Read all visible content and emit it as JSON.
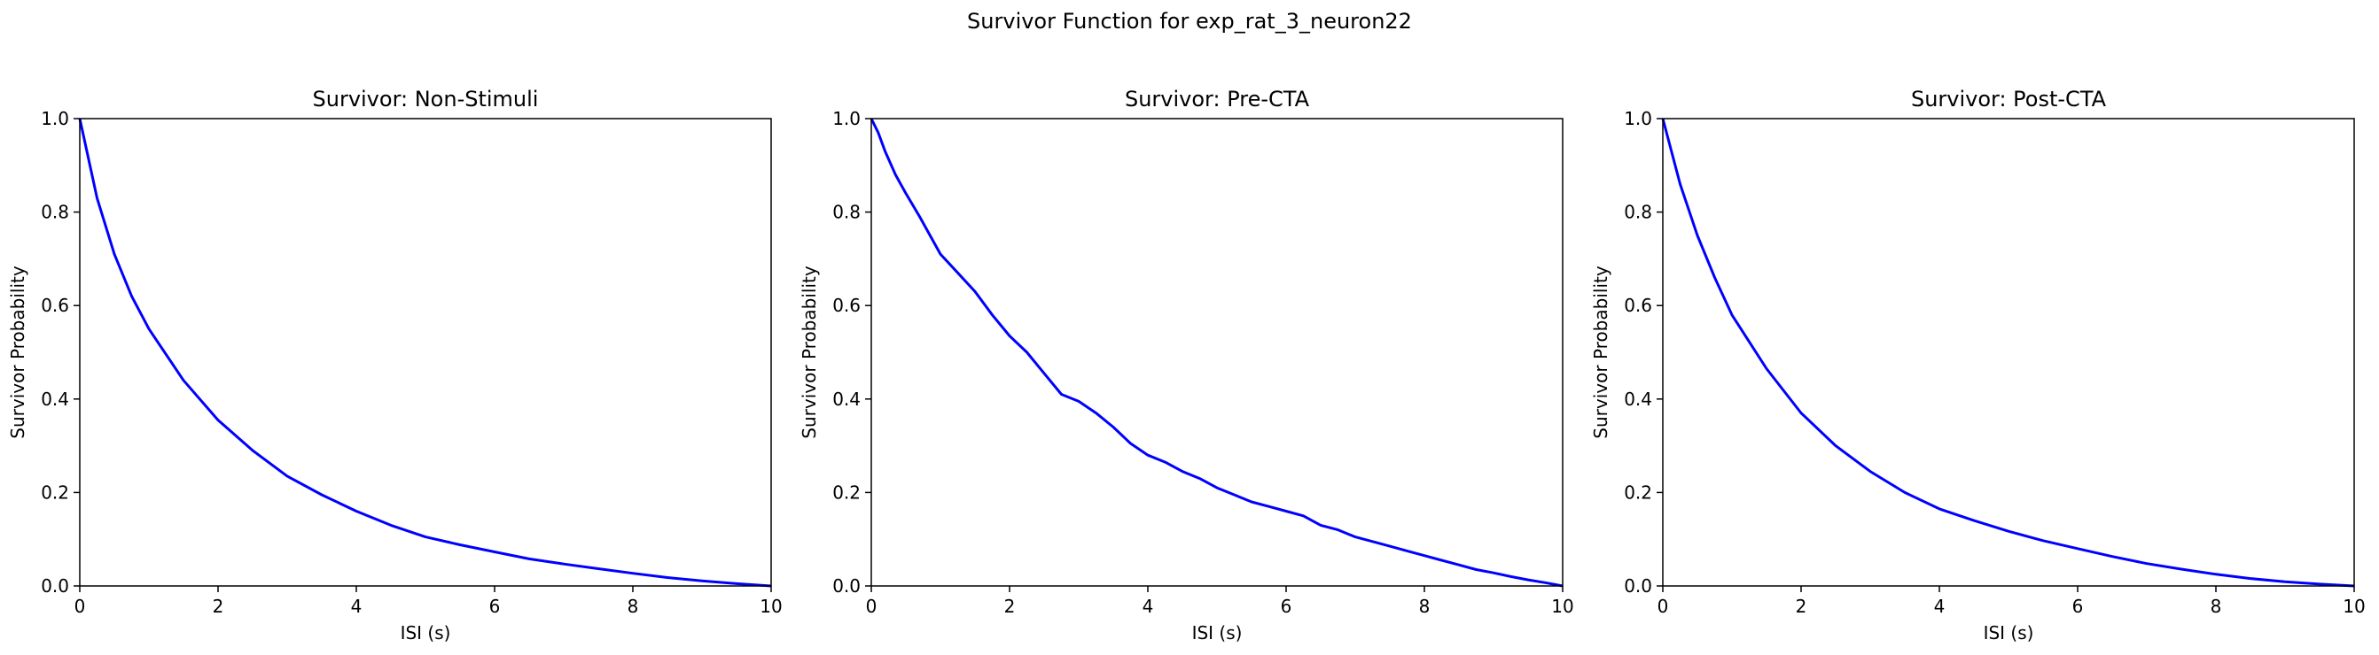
{
  "figure": {
    "suptitle": "Survivor Function for exp_rat_3_neuron22"
  },
  "style": {
    "line_color": "#0000ff",
    "axis_color": "#000000",
    "background": "#ffffff"
  },
  "chart_data": [
    {
      "type": "line",
      "title": "Survivor: Non-Stimuli",
      "xlabel": "ISI (s)",
      "ylabel": "Survivor Probability",
      "xlim": [
        0,
        10
      ],
      "ylim": [
        0,
        1
      ],
      "xticks": [
        "0",
        "2",
        "4",
        "6",
        "8",
        "10"
      ],
      "yticks": [
        "0.0",
        "0.2",
        "0.4",
        "0.6",
        "0.8",
        "1.0"
      ],
      "grid": false,
      "series": [
        {
          "x": [
            0,
            0.25,
            0.5,
            0.75,
            1.0,
            1.5,
            2.0,
            2.5,
            3.0,
            3.5,
            4.0,
            4.5,
            5.0,
            5.5,
            6.0,
            6.5,
            7.0,
            7.5,
            8.0,
            8.5,
            9.0,
            9.5,
            10.0
          ],
          "y": [
            1.0,
            0.83,
            0.71,
            0.62,
            0.55,
            0.44,
            0.355,
            0.29,
            0.235,
            0.195,
            0.16,
            0.13,
            0.105,
            0.088,
            0.073,
            0.058,
            0.047,
            0.037,
            0.027,
            0.018,
            0.011,
            0.005,
            0.0
          ]
        }
      ]
    },
    {
      "type": "line",
      "title": "Survivor: Pre-CTA",
      "xlabel": "ISI (s)",
      "ylabel": "Survivor Probability",
      "xlim": [
        0,
        10
      ],
      "ylim": [
        0,
        1
      ],
      "xticks": [
        "0",
        "2",
        "4",
        "6",
        "8",
        "10"
      ],
      "yticks": [
        "0.0",
        "0.2",
        "0.4",
        "0.6",
        "0.8",
        "1.0"
      ],
      "grid": false,
      "series": [
        {
          "x": [
            0,
            0.1,
            0.2,
            0.35,
            0.5,
            0.7,
            0.85,
            1.0,
            1.25,
            1.5,
            1.75,
            2.0,
            2.25,
            2.5,
            2.75,
            3.0,
            3.25,
            3.5,
            3.75,
            4.0,
            4.25,
            4.5,
            4.75,
            5.0,
            5.25,
            5.5,
            5.75,
            6.0,
            6.25,
            6.5,
            6.75,
            7.0,
            7.25,
            7.5,
            7.75,
            8.0,
            8.25,
            8.5,
            8.75,
            9.0,
            9.25,
            9.5,
            9.75,
            10.0
          ],
          "y": [
            1.0,
            0.97,
            0.93,
            0.88,
            0.84,
            0.79,
            0.75,
            0.71,
            0.67,
            0.63,
            0.58,
            0.535,
            0.5,
            0.455,
            0.41,
            0.395,
            0.37,
            0.34,
            0.305,
            0.28,
            0.265,
            0.245,
            0.23,
            0.21,
            0.195,
            0.18,
            0.17,
            0.16,
            0.15,
            0.13,
            0.12,
            0.105,
            0.095,
            0.085,
            0.075,
            0.065,
            0.055,
            0.045,
            0.035,
            0.028,
            0.02,
            0.013,
            0.007,
            0.0
          ]
        }
      ]
    },
    {
      "type": "line",
      "title": "Survivor: Post-CTA",
      "xlabel": "ISI (s)",
      "ylabel": "Survivor Probability",
      "xlim": [
        0,
        10
      ],
      "ylim": [
        0,
        1
      ],
      "xticks": [
        "0",
        "2",
        "4",
        "6",
        "8",
        "10"
      ],
      "yticks": [
        "0.0",
        "0.2",
        "0.4",
        "0.6",
        "0.8",
        "1.0"
      ],
      "grid": false,
      "series": [
        {
          "x": [
            0,
            0.25,
            0.5,
            0.75,
            1.0,
            1.5,
            2.0,
            2.5,
            3.0,
            3.5,
            4.0,
            4.5,
            5.0,
            5.5,
            6.0,
            6.5,
            7.0,
            7.5,
            8.0,
            8.5,
            9.0,
            9.5,
            10.0
          ],
          "y": [
            1.0,
            0.86,
            0.75,
            0.66,
            0.58,
            0.465,
            0.37,
            0.3,
            0.245,
            0.2,
            0.165,
            0.14,
            0.117,
            0.097,
            0.08,
            0.063,
            0.048,
            0.036,
            0.025,
            0.016,
            0.009,
            0.004,
            0.0
          ]
        }
      ]
    }
  ]
}
